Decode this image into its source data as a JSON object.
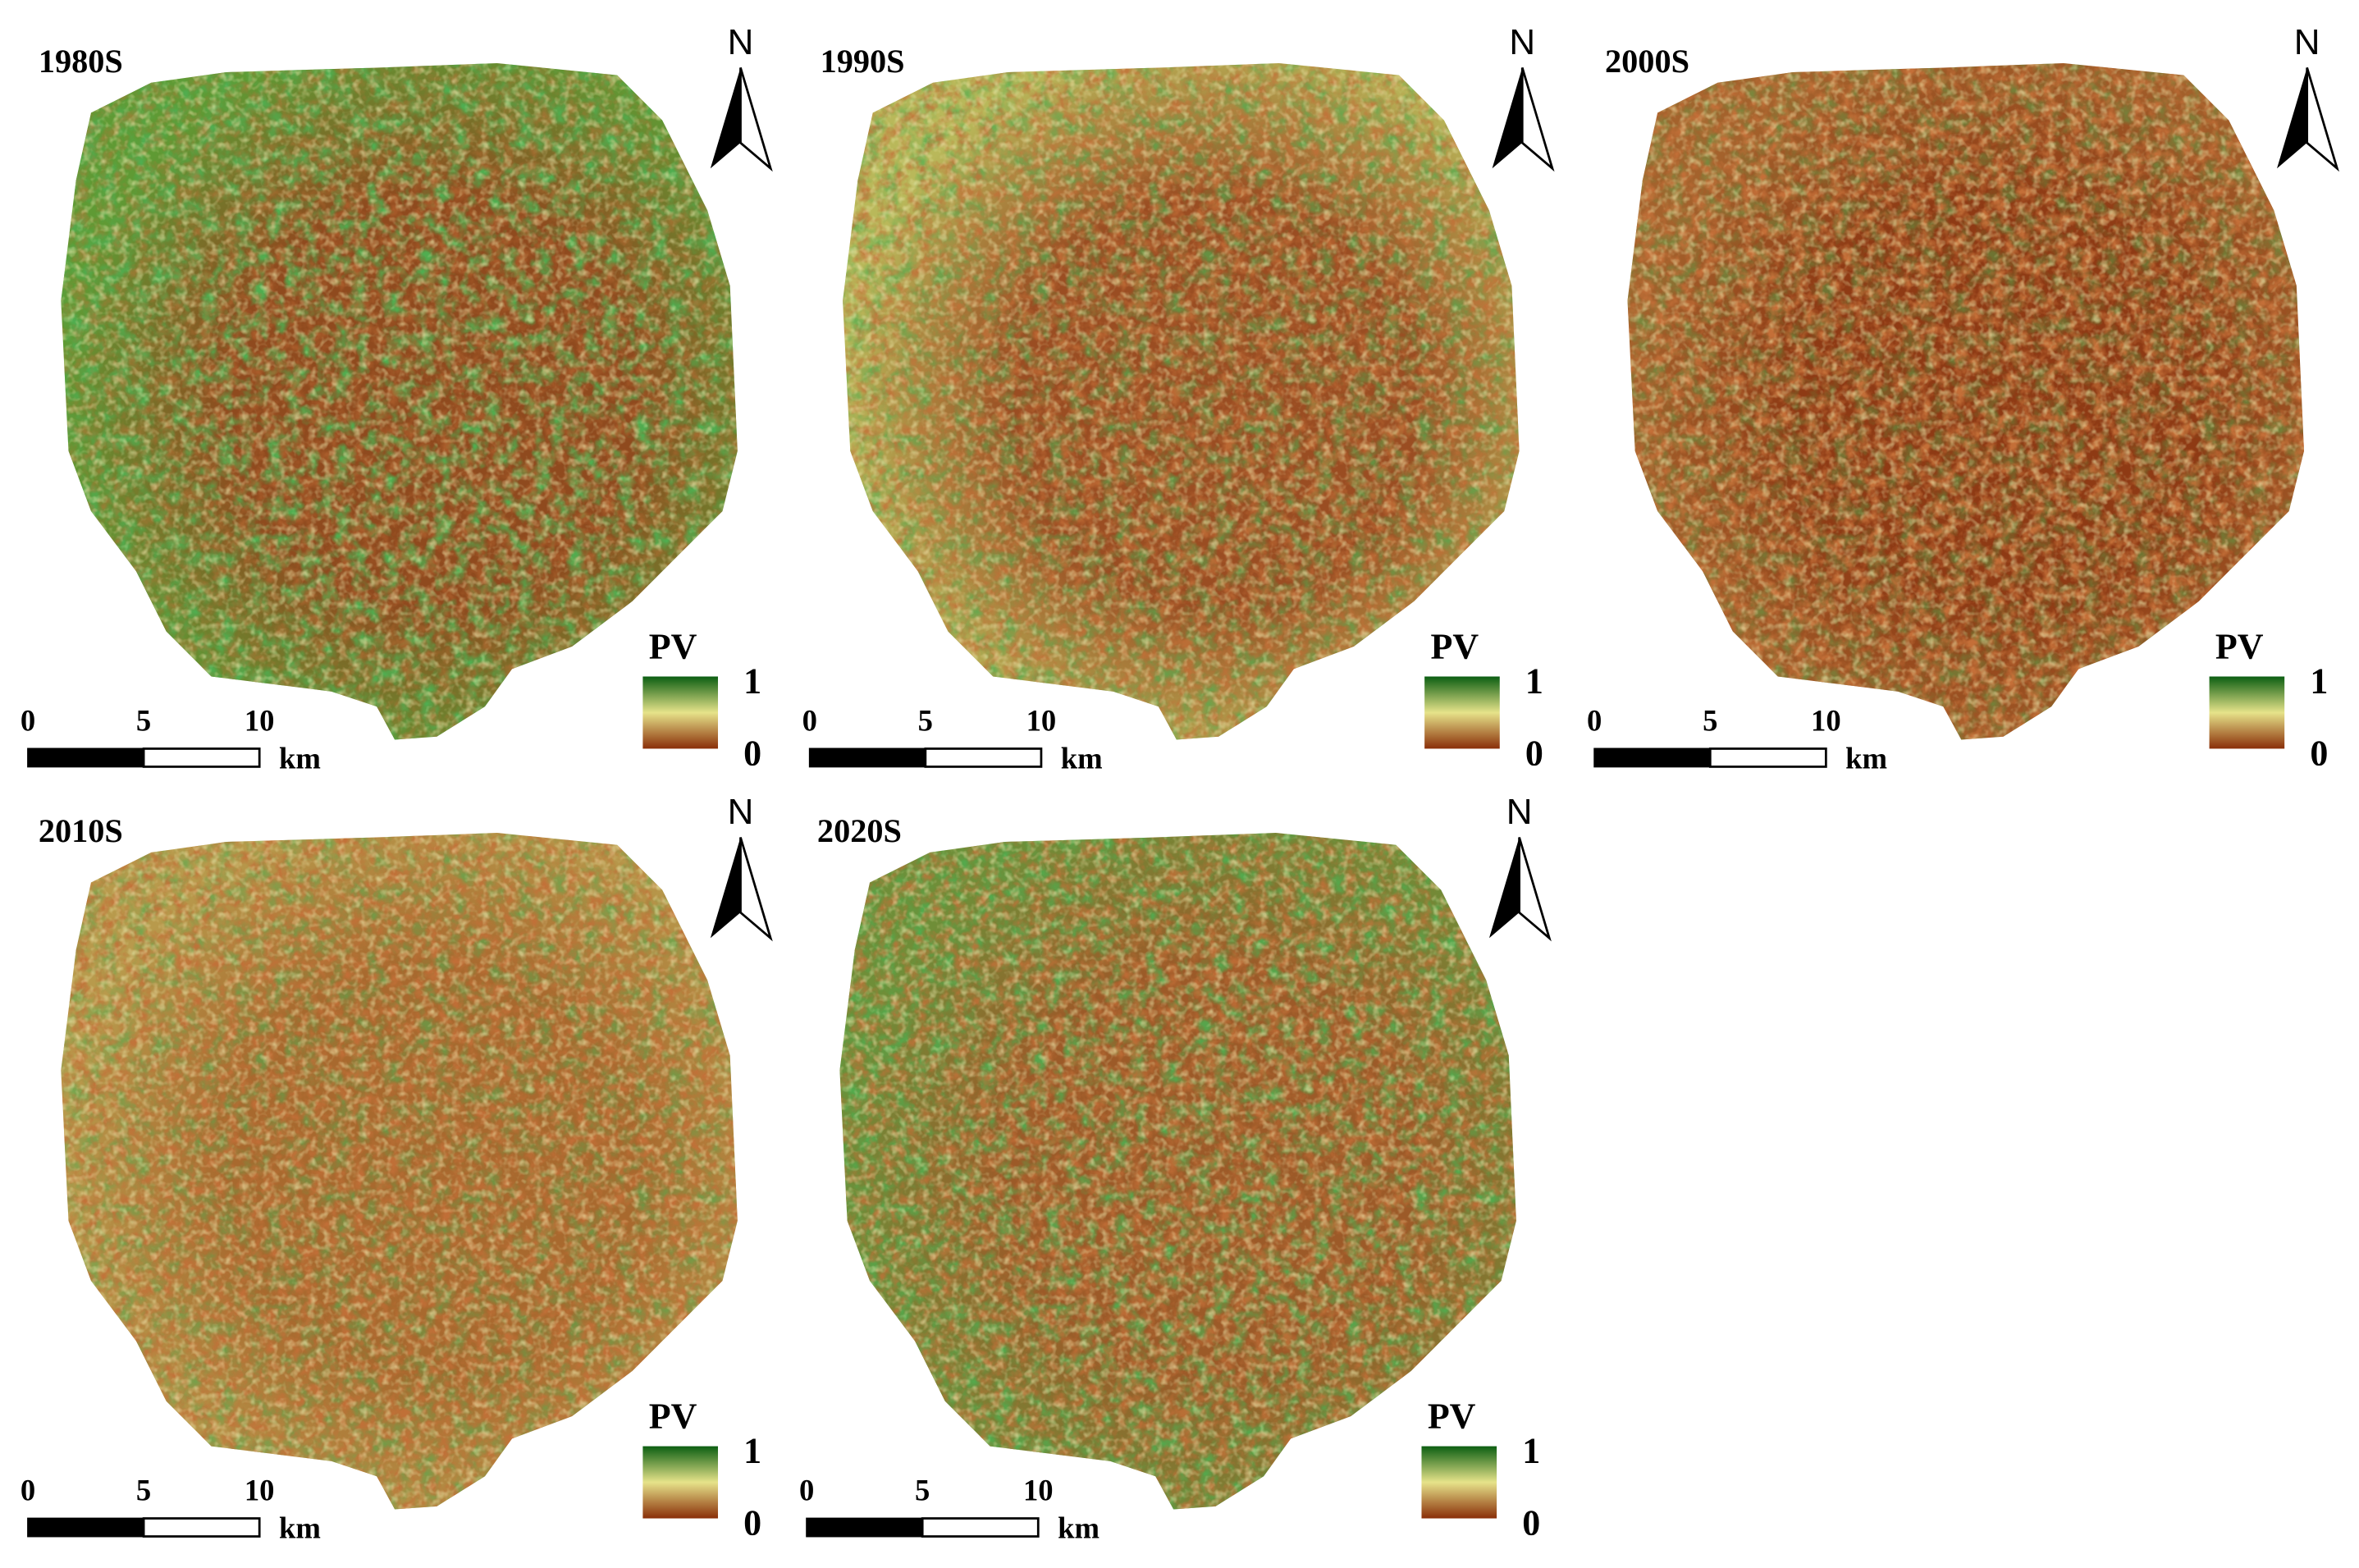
{
  "panels": [
    {
      "title": "1980S",
      "north": "N",
      "legend": {
        "title": "PV",
        "max": "1",
        "min": "0"
      },
      "scale": {
        "ticks": [
          "0",
          "5",
          "10"
        ],
        "unit": "km"
      }
    },
    {
      "title": "1990S",
      "north": "N",
      "legend": {
        "title": "PV",
        "max": "1",
        "min": "0"
      },
      "scale": {
        "ticks": [
          "0",
          "5",
          "10"
        ],
        "unit": "km"
      }
    },
    {
      "title": "2000S",
      "north": "N",
      "legend": {
        "title": "PV",
        "max": "1",
        "min": "0"
      },
      "scale": {
        "ticks": [
          "0",
          "5",
          "10"
        ],
        "unit": "km"
      }
    },
    {
      "title": "2010S",
      "north": "N",
      "legend": {
        "title": "PV",
        "max": "1",
        "min": "0"
      },
      "scale": {
        "ticks": [
          "0",
          "5",
          "10"
        ],
        "unit": "km"
      }
    },
    {
      "title": "2020S",
      "north": "N",
      "legend": {
        "title": "PV",
        "max": "1",
        "min": "0"
      },
      "scale": {
        "ticks": [
          "0",
          "5",
          "10"
        ],
        "unit": "km"
      }
    }
  ]
}
